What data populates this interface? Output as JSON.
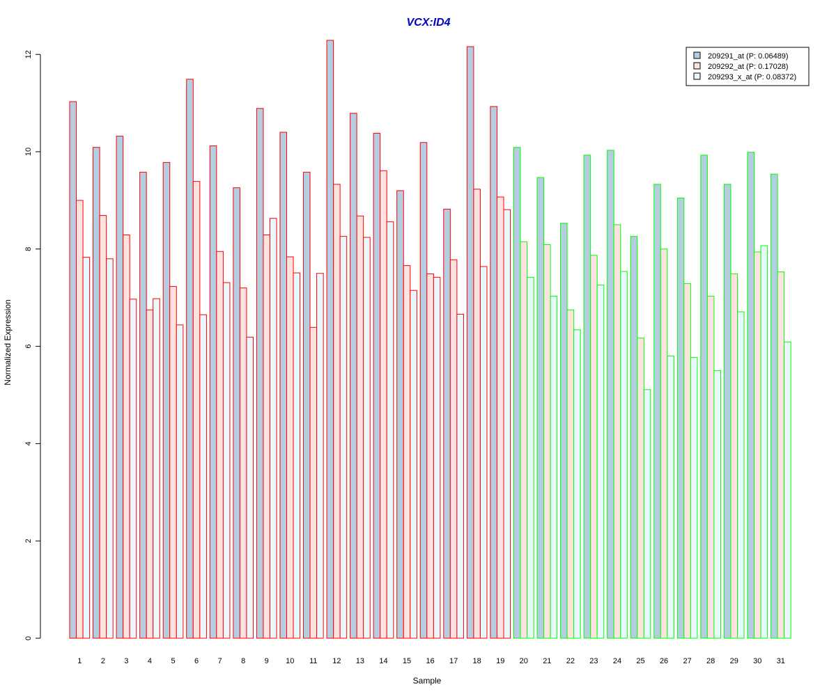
{
  "chart_data": {
    "type": "bar",
    "title": "VCX:ID4",
    "xlabel": "Sample",
    "ylabel": "Normalized Expression",
    "ylim": [
      0,
      12.3
    ],
    "yticks": [
      0,
      2,
      4,
      6,
      8,
      10,
      12
    ],
    "categories": [
      "1",
      "2",
      "3",
      "4",
      "5",
      "6",
      "7",
      "8",
      "9",
      "10",
      "11",
      "12",
      "13",
      "14",
      "15",
      "16",
      "17",
      "18",
      "19",
      "20",
      "21",
      "22",
      "23",
      "24",
      "25",
      "26",
      "27",
      "28",
      "29",
      "30",
      "31"
    ],
    "group_colors": {
      "samples_1_19": "#ff0000",
      "samples_20_31": "#00ff00"
    },
    "title_color": "#0000cc",
    "grid": false,
    "legend_position": "top-right",
    "series": [
      {
        "name": "209291_at (P: 0.06489)",
        "fill": "#b4cde0",
        "values": [
          11.03,
          10.09,
          10.32,
          9.58,
          9.78,
          11.49,
          10.12,
          9.26,
          10.89,
          10.4,
          9.58,
          12.29,
          10.79,
          10.38,
          9.2,
          10.19,
          8.82,
          12.16,
          10.93,
          10.09,
          9.47,
          8.53,
          9.93,
          10.03,
          8.26,
          9.33,
          9.05,
          9.93,
          9.33,
          9.99,
          9.54
        ]
      },
      {
        "name": "209292_at (P: 0.17028)",
        "fill": "#fde2e0",
        "values": [
          9.0,
          8.69,
          8.29,
          6.75,
          7.23,
          9.39,
          7.95,
          7.2,
          8.29,
          7.84,
          6.39,
          9.33,
          8.68,
          9.61,
          7.66,
          7.49,
          7.78,
          9.23,
          9.07,
          8.15,
          8.09,
          6.75,
          7.87,
          8.5,
          6.17,
          8.0,
          7.29,
          7.03,
          7.49,
          7.94,
          7.53
        ]
      },
      {
        "name": "209293_x_at (P: 0.08372)",
        "fill": "#e8f8fc",
        "values": [
          7.83,
          7.8,
          6.97,
          6.98,
          6.44,
          6.65,
          7.31,
          6.19,
          8.63,
          7.51,
          7.5,
          8.26,
          8.24,
          8.56,
          7.15,
          7.42,
          6.66,
          7.64,
          8.81,
          7.42,
          7.03,
          6.34,
          7.26,
          7.54,
          5.11,
          5.8,
          5.77,
          5.5,
          6.71,
          8.07,
          6.09
        ]
      }
    ]
  }
}
